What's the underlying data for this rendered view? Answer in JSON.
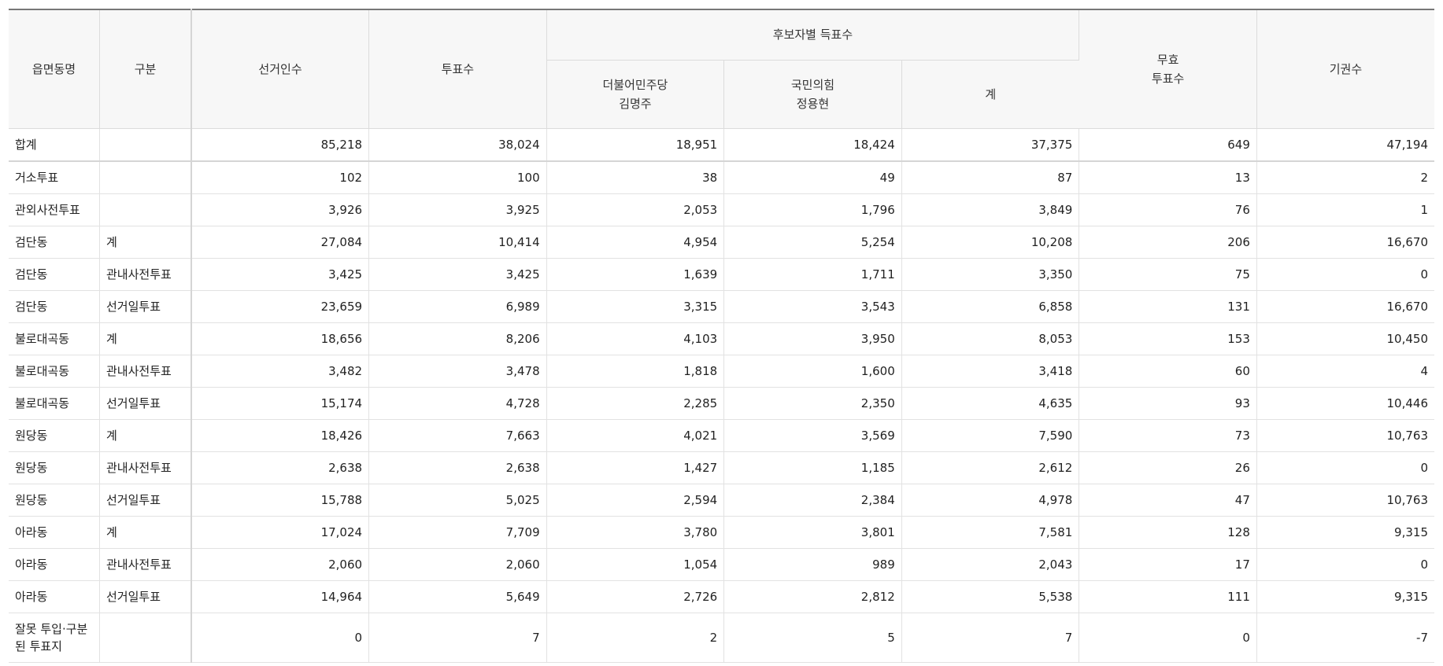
{
  "headers": {
    "name": "읍면동명",
    "type": "구분",
    "electors": "선거인수",
    "votes": "투표수",
    "candidate_group": "후보자별 득표수",
    "cand1_party": "더불어민주당",
    "cand1_name": "김명주",
    "cand2_party": "국민의힘",
    "cand2_name": "정용현",
    "cand_total": "계",
    "invalid_line1": "무효",
    "invalid_line2": "투표수",
    "abstain": "기권수"
  },
  "rows": [
    {
      "name": "합계",
      "type": "",
      "electors": "85,218",
      "votes": "38,024",
      "c1": "18,951",
      "c2": "18,424",
      "sum": "37,375",
      "invalid": "649",
      "abstain": "47,194"
    },
    {
      "name": "거소투표",
      "type": "",
      "electors": "102",
      "votes": "100",
      "c1": "38",
      "c2": "49",
      "sum": "87",
      "invalid": "13",
      "abstain": "2"
    },
    {
      "name": "관외사전투표",
      "type": "",
      "electors": "3,926",
      "votes": "3,925",
      "c1": "2,053",
      "c2": "1,796",
      "sum": "3,849",
      "invalid": "76",
      "abstain": "1"
    },
    {
      "name": "검단동",
      "type": "계",
      "electors": "27,084",
      "votes": "10,414",
      "c1": "4,954",
      "c2": "5,254",
      "sum": "10,208",
      "invalid": "206",
      "abstain": "16,670"
    },
    {
      "name": "검단동",
      "type": "관내사전투표",
      "electors": "3,425",
      "votes": "3,425",
      "c1": "1,639",
      "c2": "1,711",
      "sum": "3,350",
      "invalid": "75",
      "abstain": "0"
    },
    {
      "name": "검단동",
      "type": "선거일투표",
      "electors": "23,659",
      "votes": "6,989",
      "c1": "3,315",
      "c2": "3,543",
      "sum": "6,858",
      "invalid": "131",
      "abstain": "16,670"
    },
    {
      "name": "불로대곡동",
      "type": "계",
      "electors": "18,656",
      "votes": "8,206",
      "c1": "4,103",
      "c2": "3,950",
      "sum": "8,053",
      "invalid": "153",
      "abstain": "10,450"
    },
    {
      "name": "불로대곡동",
      "type": "관내사전투표",
      "electors": "3,482",
      "votes": "3,478",
      "c1": "1,818",
      "c2": "1,600",
      "sum": "3,418",
      "invalid": "60",
      "abstain": "4"
    },
    {
      "name": "불로대곡동",
      "type": "선거일투표",
      "electors": "15,174",
      "votes": "4,728",
      "c1": "2,285",
      "c2": "2,350",
      "sum": "4,635",
      "invalid": "93",
      "abstain": "10,446"
    },
    {
      "name": "원당동",
      "type": "계",
      "electors": "18,426",
      "votes": "7,663",
      "c1": "4,021",
      "c2": "3,569",
      "sum": "7,590",
      "invalid": "73",
      "abstain": "10,763"
    },
    {
      "name": "원당동",
      "type": "관내사전투표",
      "electors": "2,638",
      "votes": "2,638",
      "c1": "1,427",
      "c2": "1,185",
      "sum": "2,612",
      "invalid": "26",
      "abstain": "0"
    },
    {
      "name": "원당동",
      "type": "선거일투표",
      "electors": "15,788",
      "votes": "5,025",
      "c1": "2,594",
      "c2": "2,384",
      "sum": "4,978",
      "invalid": "47",
      "abstain": "10,763"
    },
    {
      "name": "아라동",
      "type": "계",
      "electors": "17,024",
      "votes": "7,709",
      "c1": "3,780",
      "c2": "3,801",
      "sum": "7,581",
      "invalid": "128",
      "abstain": "9,315"
    },
    {
      "name": "아라동",
      "type": "관내사전투표",
      "electors": "2,060",
      "votes": "2,060",
      "c1": "1,054",
      "c2": "989",
      "sum": "2,043",
      "invalid": "17",
      "abstain": "0"
    },
    {
      "name": "아라동",
      "type": "선거일투표",
      "electors": "14,964",
      "votes": "5,649",
      "c1": "2,726",
      "c2": "2,812",
      "sum": "5,538",
      "invalid": "111",
      "abstain": "9,315"
    },
    {
      "name": "잘못 투입·구분된 투표지",
      "type": "",
      "electors": "0",
      "votes": "7",
      "c1": "2",
      "c2": "5",
      "sum": "7",
      "invalid": "0",
      "abstain": "-7"
    }
  ]
}
